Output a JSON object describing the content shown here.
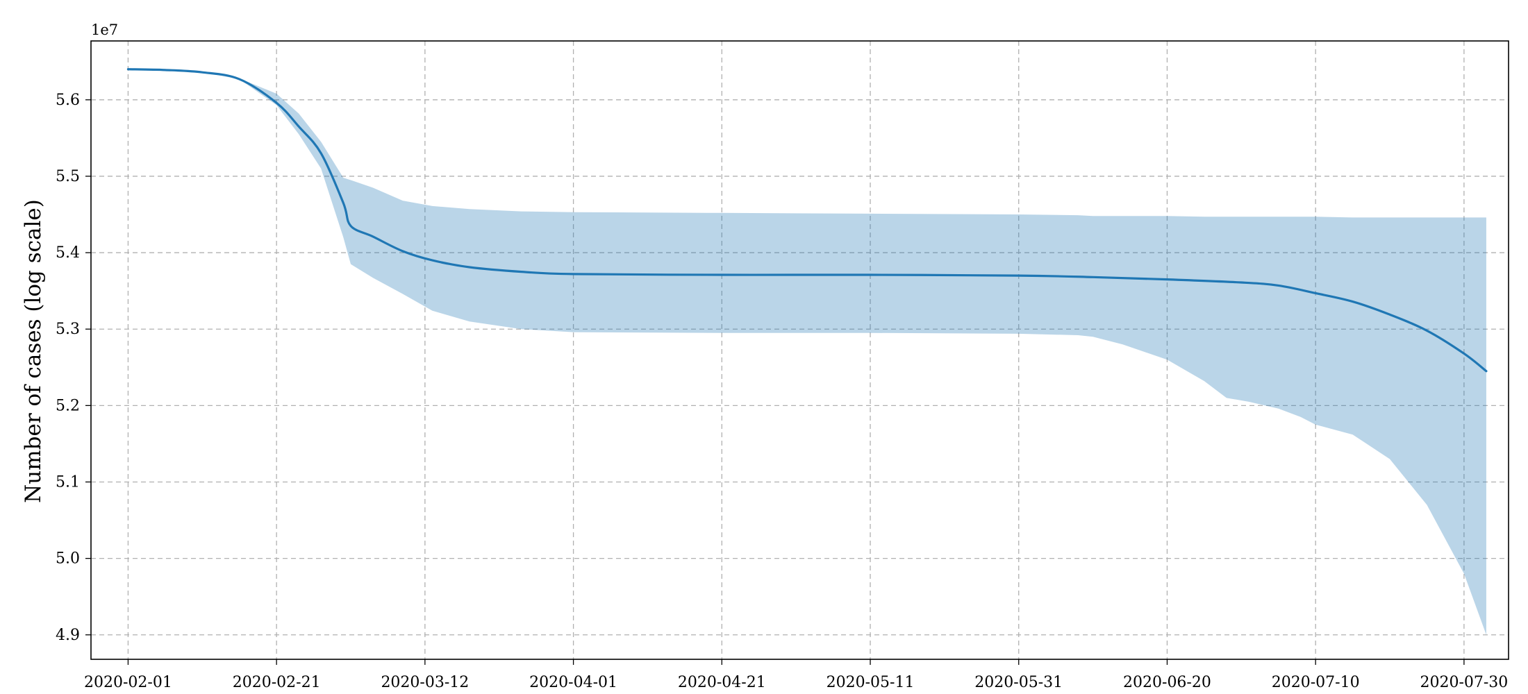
{
  "chart_data": {
    "type": "line",
    "title": "",
    "xlabel": "",
    "ylabel": "Number of cases (log scale)",
    "y_offset_label": "1e7",
    "x_scale": "date",
    "x_tick_labels": [
      "2020-02-01",
      "2020-02-21",
      "2020-03-12",
      "2020-04-01",
      "2020-04-21",
      "2020-05-11",
      "2020-05-31",
      "2020-06-20",
      "2020-07-10",
      "2020-07-30"
    ],
    "y_tick_labels": [
      "4.9",
      "5.0",
      "5.1",
      "5.2",
      "5.3",
      "5.4",
      "5.5",
      "5.6"
    ],
    "xlim": [
      "2020-01-27",
      "2020-08-05"
    ],
    "ylim": [
      4.868,
      5.677
    ],
    "grid": true,
    "legend": "none",
    "series": [
      {
        "type": "line",
        "color": "#1f77b4",
        "x": [
          "2020-02-01",
          "2020-02-06",
          "2020-02-11",
          "2020-02-16",
          "2020-02-21",
          "2020-02-24",
          "2020-02-27",
          "2020-03-01",
          "2020-03-02",
          "2020-03-05",
          "2020-03-09",
          "2020-03-13",
          "2020-03-18",
          "2020-03-25",
          "2020-04-01",
          "2020-04-21",
          "2020-05-11",
          "2020-05-31",
          "2020-06-10",
          "2020-06-20",
          "2020-06-30",
          "2020-07-05",
          "2020-07-10",
          "2020-07-15",
          "2020-07-20",
          "2020-07-25",
          "2020-07-30",
          "2020-08-02"
        ],
        "y": [
          5.64,
          5.639,
          5.636,
          5.627,
          5.596,
          5.565,
          5.53,
          5.465,
          5.435,
          5.421,
          5.402,
          5.39,
          5.381,
          5.375,
          5.372,
          5.371,
          5.371,
          5.37,
          5.368,
          5.365,
          5.361,
          5.357,
          5.347,
          5.336,
          5.319,
          5.298,
          5.268,
          5.245
        ]
      },
      {
        "type": "band",
        "color": "#1f77b4",
        "opacity": 0.31,
        "x": [
          "2020-02-01",
          "2020-02-11",
          "2020-02-16",
          "2020-02-21",
          "2020-02-24",
          "2020-02-27",
          "2020-03-01",
          "2020-03-02",
          "2020-03-05",
          "2020-03-09",
          "2020-03-13",
          "2020-03-18",
          "2020-03-25",
          "2020-04-01",
          "2020-04-21",
          "2020-05-11",
          "2020-05-31",
          "2020-06-08",
          "2020-06-10",
          "2020-06-14",
          "2020-06-20",
          "2020-06-25",
          "2020-06-28",
          "2020-07-01",
          "2020-07-05",
          "2020-07-08",
          "2020-07-10",
          "2020-07-15",
          "2020-07-20",
          "2020-07-25",
          "2020-07-30",
          "2020-08-02"
        ],
        "lower": [
          5.64,
          5.636,
          5.627,
          5.593,
          5.555,
          5.51,
          5.42,
          5.385,
          5.367,
          5.346,
          5.324,
          5.31,
          5.3,
          5.296,
          5.295,
          5.295,
          5.294,
          5.292,
          5.29,
          5.28,
          5.26,
          5.232,
          5.21,
          5.205,
          5.196,
          5.185,
          5.175,
          5.162,
          5.13,
          5.07,
          4.98,
          4.9
        ],
        "upper": [
          5.64,
          5.636,
          5.628,
          5.608,
          5.582,
          5.545,
          5.498,
          5.495,
          5.485,
          5.468,
          5.461,
          5.457,
          5.454,
          5.453,
          5.452,
          5.451,
          5.45,
          5.449,
          5.448,
          5.448,
          5.448,
          5.447,
          5.447,
          5.447,
          5.447,
          5.447,
          5.447,
          5.446,
          5.446,
          5.446,
          5.446,
          5.446
        ]
      }
    ]
  }
}
